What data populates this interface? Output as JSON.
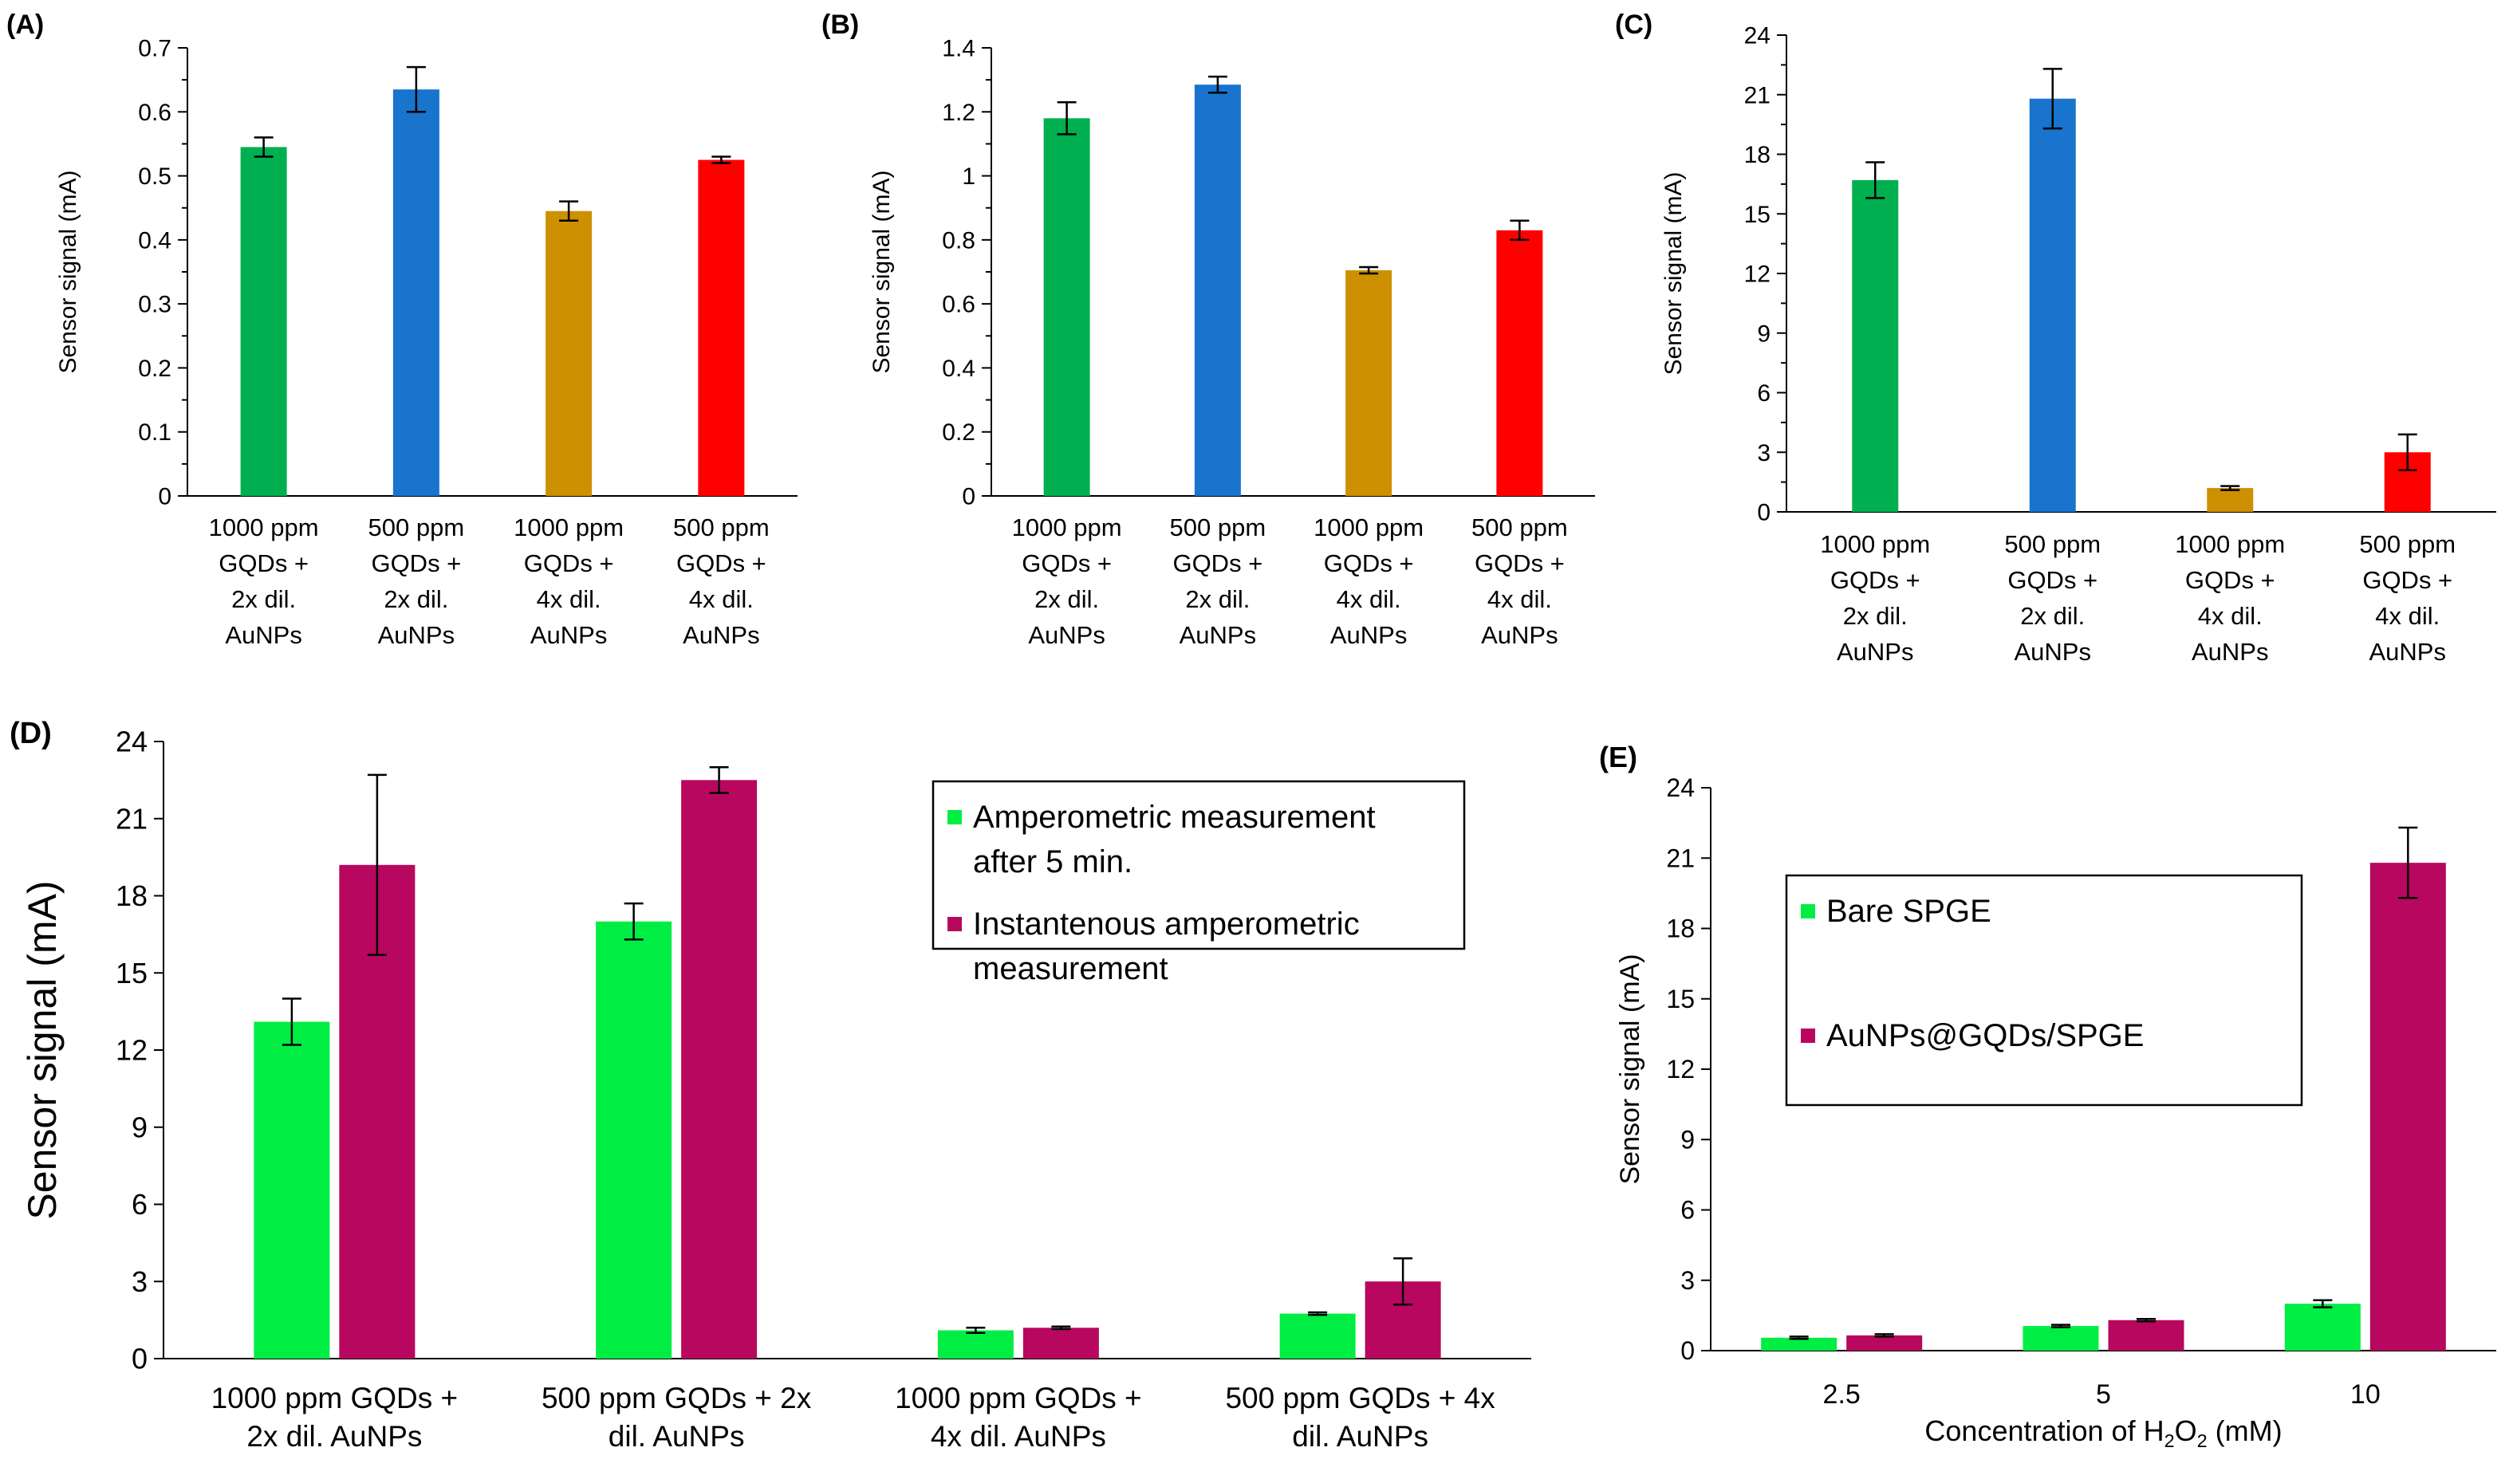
{
  "colors": {
    "green": "#00b050",
    "blue": "#1874cd",
    "gold": "#cc9000",
    "red": "#ff0000",
    "light_green": "#00ee44",
    "magenta": "#b8075e"
  },
  "chart_data": [
    {
      "panel": "(A)",
      "type": "bar",
      "categories": [
        [
          "1000 ppm",
          "GQDs +",
          "2x dil.",
          "AuNPs"
        ],
        [
          "500 ppm",
          "GQDs +",
          "2x dil.",
          "AuNPs"
        ],
        [
          "1000 ppm",
          "GQDs +",
          "4x dil.",
          "AuNPs"
        ],
        [
          "500 ppm",
          "GQDs +",
          "4x dil.",
          "AuNPs"
        ]
      ],
      "values": [
        0.545,
        0.635,
        0.445,
        0.525
      ],
      "errors": [
        0.015,
        0.035,
        0.015,
        0.005
      ],
      "bar_colors": [
        "green",
        "blue",
        "gold",
        "red"
      ],
      "ylabel": "Sensor signal (mA)",
      "xlabel": "",
      "ylim": [
        0,
        0.7
      ],
      "yticks": [
        "0",
        "0.1",
        "0.2",
        "0.3",
        "0.4",
        "0.5",
        "0.6",
        "0.7"
      ]
    },
    {
      "panel": "(B)",
      "type": "bar",
      "categories": [
        [
          "1000 ppm",
          "GQDs +",
          "2x dil.",
          "AuNPs"
        ],
        [
          "500 ppm",
          "GQDs +",
          "2x dil.",
          "AuNPs"
        ],
        [
          "1000 ppm",
          "GQDs +",
          "4x dil.",
          "AuNPs"
        ],
        [
          "500 ppm",
          "GQDs +",
          "4x dil.",
          "AuNPs"
        ]
      ],
      "values": [
        1.18,
        1.285,
        0.705,
        0.83
      ],
      "errors": [
        0.05,
        0.025,
        0.01,
        0.03
      ],
      "bar_colors": [
        "green",
        "blue",
        "gold",
        "red"
      ],
      "ylabel": "Sensor signal (mA)",
      "xlabel": "",
      "ylim": [
        0,
        1.4
      ],
      "yticks": [
        "0",
        "0.2",
        "0.4",
        "0.6",
        "0.8",
        "1",
        "1.2",
        "1.4"
      ]
    },
    {
      "panel": "(C)",
      "type": "bar",
      "categories": [
        [
          "1000 ppm",
          "GQDs +",
          "2x dil.",
          "AuNPs"
        ],
        [
          "500 ppm",
          "GQDs +",
          "2x dil.",
          "AuNPs"
        ],
        [
          "1000 ppm",
          "GQDs +",
          "4x dil.",
          "AuNPs"
        ],
        [
          "500 ppm",
          "GQDs +",
          "4x dil.",
          "AuNPs"
        ]
      ],
      "values": [
        16.7,
        20.8,
        1.2,
        3.0
      ],
      "errors": [
        0.9,
        1.5,
        0.1,
        0.9
      ],
      "bar_colors": [
        "green",
        "blue",
        "gold",
        "red"
      ],
      "ylabel": "Sensor signal (mA)",
      "xlabel": "",
      "ylim": [
        0,
        24
      ],
      "yticks": [
        "0",
        "3",
        "6",
        "9",
        "12",
        "15",
        "18",
        "21",
        "24"
      ]
    },
    {
      "panel": "(D)",
      "type": "bar",
      "categories": [
        [
          "1000 ppm GQDs +",
          "2x dil. AuNPs"
        ],
        [
          "500 ppm GQDs + 2x",
          "dil. AuNPs"
        ],
        [
          "1000 ppm GQDs +",
          "4x dil. AuNPs"
        ],
        [
          "500 ppm GQDs + 4x",
          "dil. AuNPs"
        ]
      ],
      "series": [
        {
          "name": [
            "Amperometric measurement",
            "after 5 min."
          ],
          "color": "light_green",
          "values": [
            13.1,
            17.0,
            1.1,
            1.75
          ],
          "errors": [
            0.9,
            0.7,
            0.1,
            0.05
          ]
        },
        {
          "name": [
            "Instantenous amperometric",
            "measurement"
          ],
          "color": "magenta",
          "values": [
            19.2,
            22.5,
            1.2,
            3.0
          ],
          "errors": [
            3.5,
            0.5,
            0.05,
            0.9
          ]
        }
      ],
      "ylabel": "Sensor signal (mA)",
      "xlabel": "",
      "ylim": [
        0,
        24
      ],
      "yticks": [
        "0",
        "3",
        "6",
        "9",
        "12",
        "15",
        "18",
        "21",
        "24"
      ],
      "legend_position": "top-right"
    },
    {
      "panel": "(E)",
      "type": "bar",
      "categories": [
        [
          "2.5"
        ],
        [
          "5"
        ],
        [
          "10"
        ]
      ],
      "series": [
        {
          "name": [
            "Bare SPGE"
          ],
          "color": "light_green",
          "values": [
            0.55,
            1.05,
            2.0
          ],
          "errors": [
            0.05,
            0.05,
            0.15
          ]
        },
        {
          "name": [
            "AuNPs@GQDs/SPGE"
          ],
          "color": "magenta",
          "values": [
            0.65,
            1.3,
            20.8
          ],
          "errors": [
            0.05,
            0.05,
            1.5
          ]
        }
      ],
      "ylabel": "Sensor signal (mA)",
      "xlabel": {
        "pre": "Concentration of H",
        "sub1": "2",
        "mid": "O",
        "sub2": "2",
        "post": " (mM)"
      },
      "ylim": [
        0,
        24
      ],
      "yticks": [
        "0",
        "3",
        "6",
        "9",
        "12",
        "15",
        "18",
        "21",
        "24"
      ],
      "legend_position": "top-left"
    }
  ]
}
